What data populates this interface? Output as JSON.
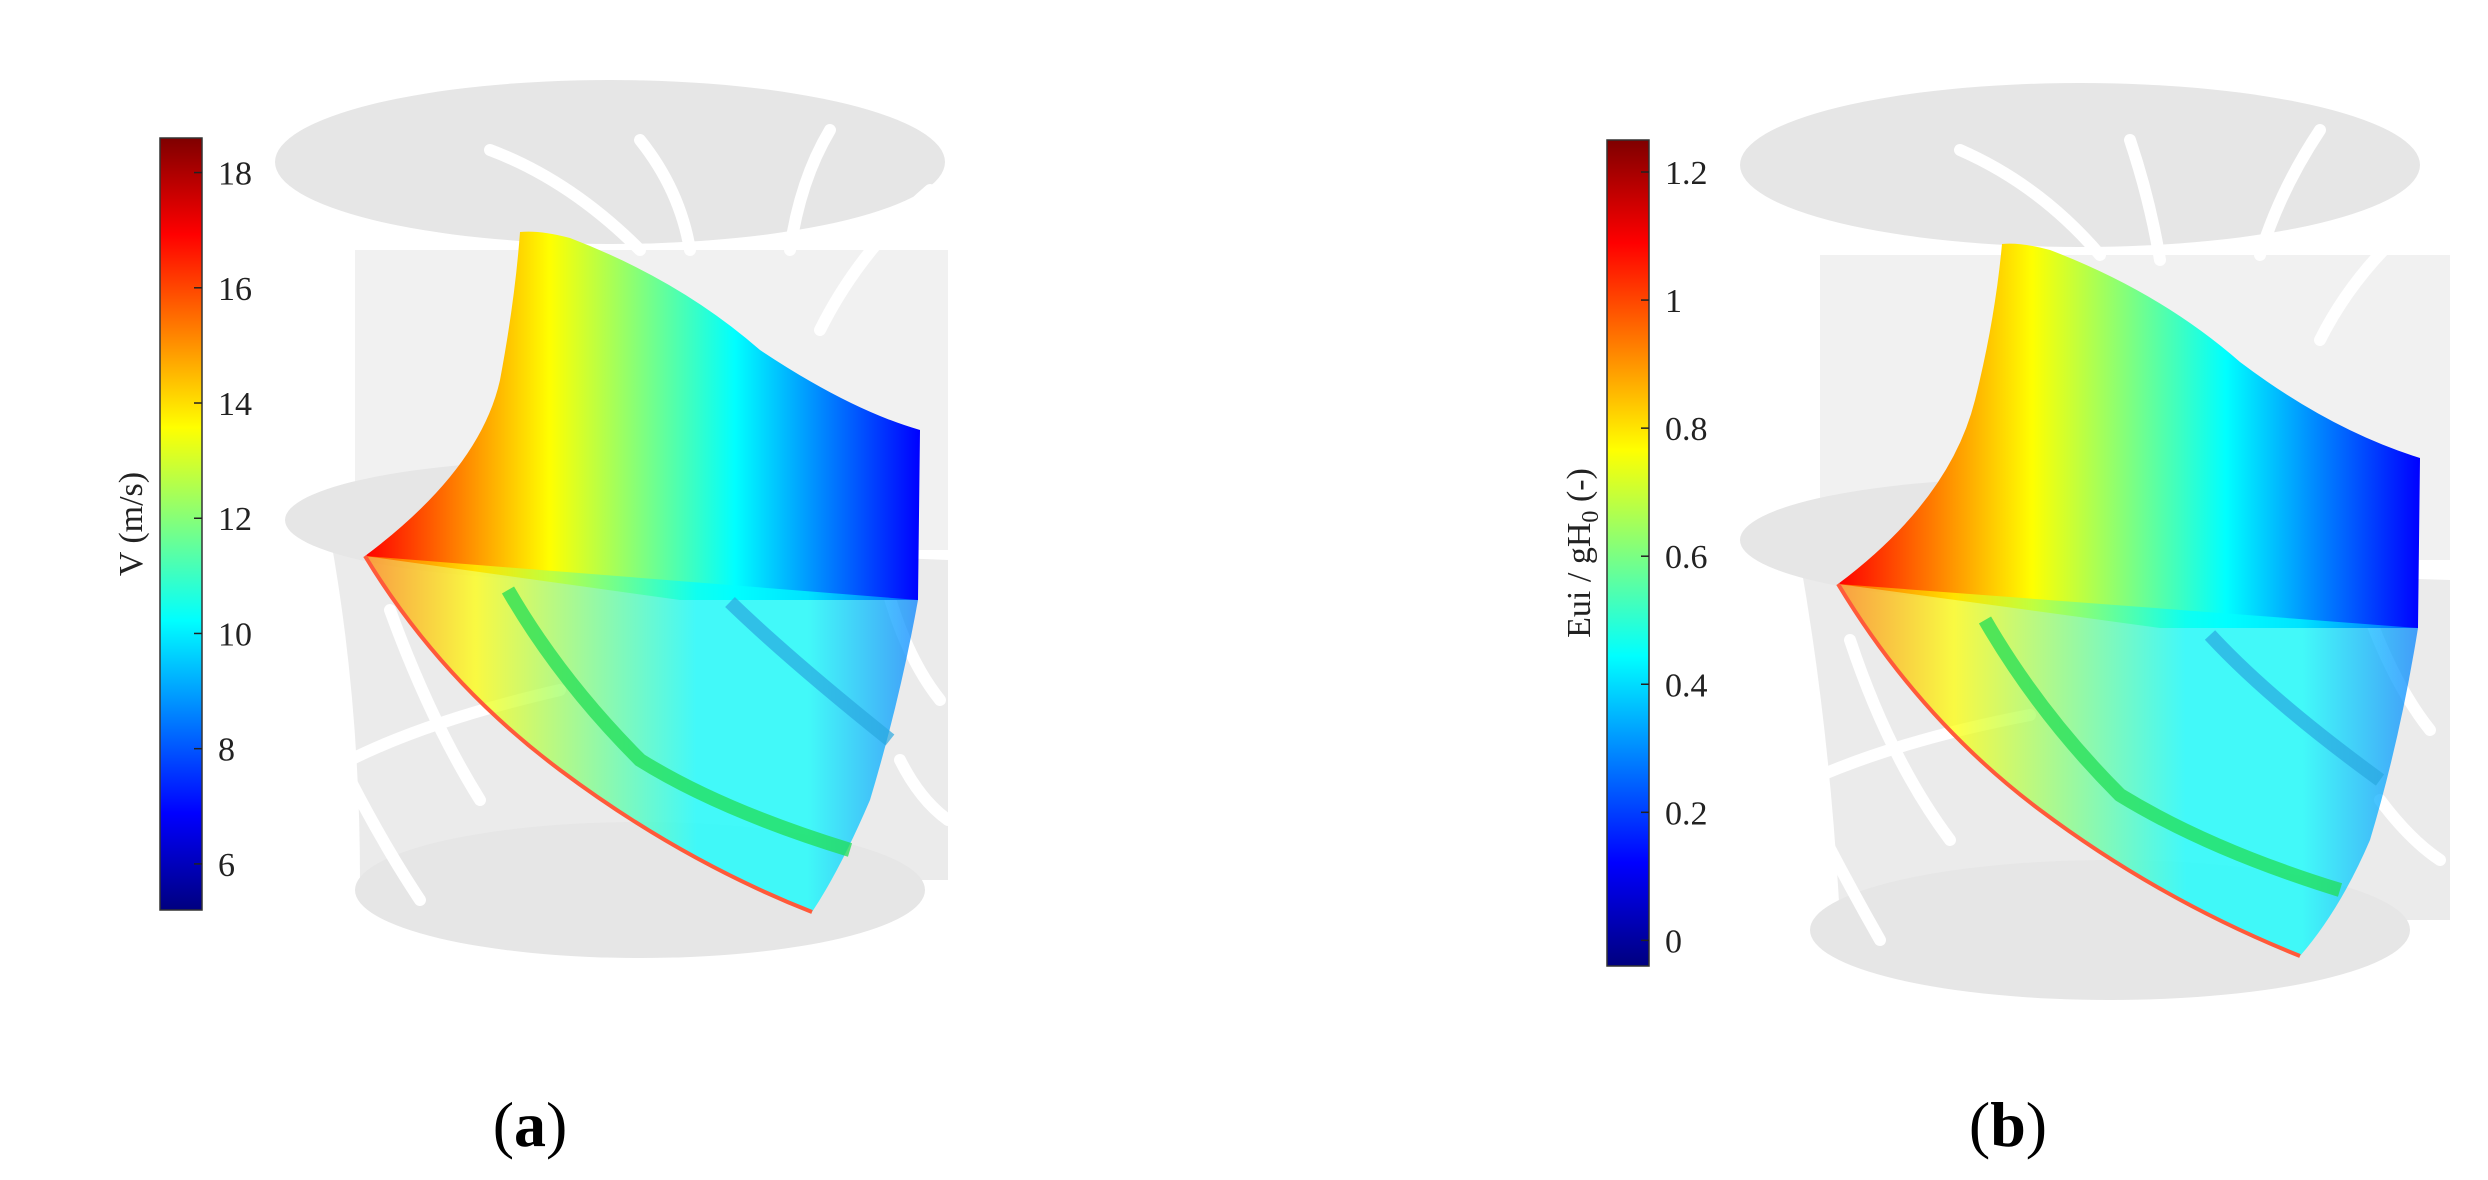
{
  "colormap": [
    "#00007f",
    "#0000ff",
    "#007fff",
    "#00ffff",
    "#7fff7f",
    "#ffff00",
    "#ff7f00",
    "#ff0000",
    "#7f0000"
  ],
  "background_color": "#e6e6e6",
  "panels": [
    {
      "label_open": "(",
      "label_letter": "a",
      "label_close": ")",
      "colorbar": {
        "title": "V (m/s)",
        "min": 5.2,
        "max": 18.6,
        "ticks": [
          {
            "value": 6,
            "label": "6"
          },
          {
            "value": 8,
            "label": "8"
          },
          {
            "value": 10,
            "label": "10"
          },
          {
            "value": 12,
            "label": "12"
          },
          {
            "value": 14,
            "label": "14"
          },
          {
            "value": 16,
            "label": "16"
          },
          {
            "value": 18,
            "label": "18"
          }
        ]
      }
    },
    {
      "label_open": "(",
      "label_letter": "b",
      "label_close": ")",
      "colorbar": {
        "title_main": "Eui / gH",
        "title_sub": "0",
        "title_tail": " (-)",
        "min": -0.04,
        "max": 1.25,
        "ticks": [
          {
            "value": 0,
            "label": "0"
          },
          {
            "value": 0.2,
            "label": "0.2"
          },
          {
            "value": 0.4,
            "label": "0.4"
          },
          {
            "value": 0.6,
            "label": "0.6"
          },
          {
            "value": 0.8,
            "label": "0.8"
          },
          {
            "value": 1,
            "label": "1"
          },
          {
            "value": 1.2,
            "label": "1.2"
          }
        ]
      }
    }
  ]
}
